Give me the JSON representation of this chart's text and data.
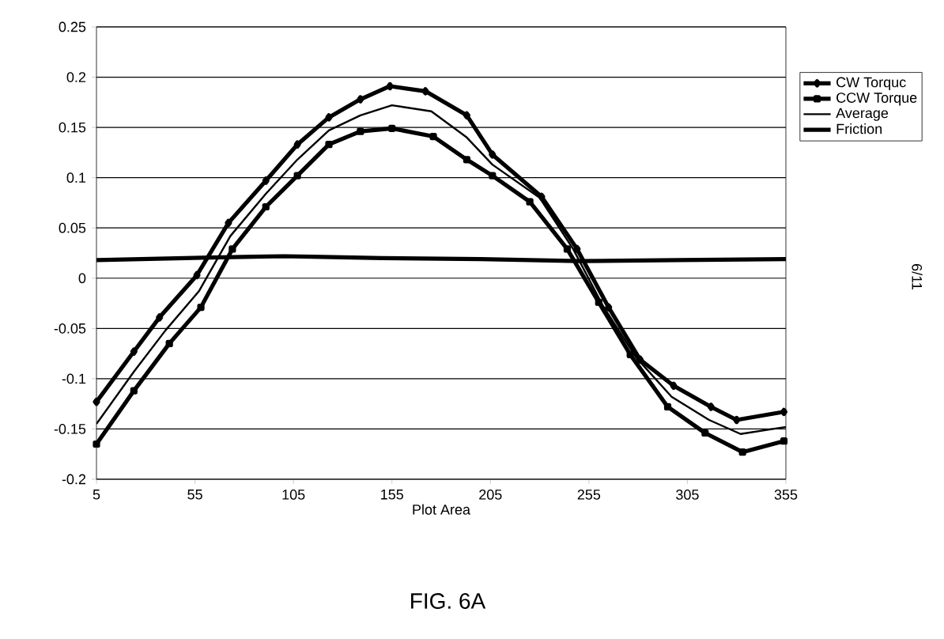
{
  "chart_data": {
    "type": "line",
    "xlabel": "Plot Area",
    "xlim": [
      5,
      355
    ],
    "xticks": [
      5,
      55,
      105,
      155,
      205,
      255,
      305,
      355
    ],
    "ylim": [
      -0.2,
      0.25
    ],
    "yticks": [
      -0.2,
      -0.15,
      -0.1,
      -0.05,
      0,
      0.05,
      0.1,
      0.15,
      0.2,
      0.25
    ],
    "grid": "y",
    "legend": "right",
    "series": [
      {
        "name": "CW Torquc",
        "color": "#000000",
        "marker": "diamond",
        "x": [
          5,
          24,
          37,
          56,
          72,
          91,
          107,
          123,
          139,
          154,
          172,
          193,
          206,
          231,
          249,
          265,
          281,
          298,
          317,
          330,
          354
        ],
        "values": [
          -0.123,
          -0.073,
          -0.039,
          0.003,
          0.055,
          0.097,
          0.133,
          0.16,
          0.178,
          0.191,
          0.186,
          0.162,
          0.123,
          0.081,
          0.029,
          -0.029,
          -0.081,
          -0.107,
          -0.128,
          -0.141,
          -0.133
        ]
      },
      {
        "name": "CCW Torque",
        "color": "#000000",
        "marker": "square",
        "x": [
          5,
          24,
          42,
          58,
          74,
          91,
          107,
          123,
          139,
          155,
          176,
          193,
          206,
          225,
          244,
          260,
          276,
          295,
          314,
          333,
          354
        ],
        "values": [
          -0.165,
          -0.112,
          -0.065,
          -0.029,
          0.029,
          0.071,
          0.102,
          0.133,
          0.146,
          0.149,
          0.141,
          0.118,
          0.102,
          0.076,
          0.029,
          -0.024,
          -0.076,
          -0.128,
          -0.154,
          -0.173,
          -0.162
        ]
      },
      {
        "name": "Average",
        "color": "#000000",
        "marker": "none",
        "x": [
          5,
          24,
          40,
          57,
          73,
          91,
          107,
          123,
          139,
          155,
          175,
          193,
          206,
          230,
          247,
          262,
          279,
          297,
          316,
          332,
          355
        ],
        "values": [
          -0.145,
          -0.093,
          -0.052,
          -0.013,
          0.042,
          0.084,
          0.118,
          0.147,
          0.162,
          0.172,
          0.166,
          0.14,
          0.113,
          0.08,
          0.029,
          -0.027,
          -0.079,
          -0.118,
          -0.141,
          -0.155,
          -0.148
        ]
      },
      {
        "name": "Friction",
        "color": "#000000",
        "marker": "none",
        "x": [
          5,
          50,
          100,
          150,
          200,
          250,
          300,
          355
        ],
        "values": [
          0.018,
          0.02,
          0.022,
          0.02,
          0.019,
          0.017,
          0.018,
          0.019
        ]
      }
    ],
    "annotations": [
      "FIG. 6A",
      "6/11"
    ]
  }
}
